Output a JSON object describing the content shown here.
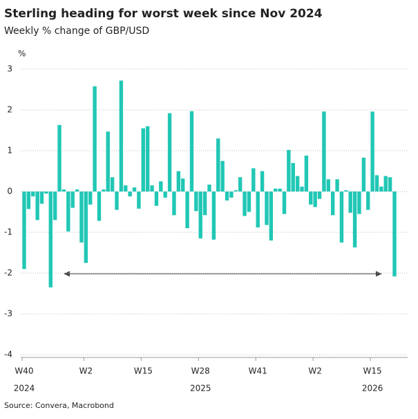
{
  "chart_data": {
    "type": "bar",
    "title": "Sterling heading for worst week since Nov 2024",
    "subtitle": "Weekly % change of GBP/USD",
    "y_label": "%",
    "source": "Source: Convera, Macrobond",
    "color": "#21c7b5",
    "grid": true,
    "ylim": [
      -4,
      3
    ],
    "yticks": [
      -4,
      -3,
      -2,
      -1,
      0,
      1,
      2,
      3
    ],
    "categories": [
      "W40",
      null,
      null,
      null,
      null,
      null,
      null,
      null,
      null,
      null,
      null,
      null,
      null,
      null,
      "W2",
      null,
      null,
      null,
      null,
      null,
      null,
      null,
      null,
      null,
      null,
      null,
      null,
      "W15",
      null,
      null,
      null,
      null,
      null,
      null,
      null,
      null,
      null,
      null,
      null,
      null,
      "W28",
      null,
      null,
      null,
      null,
      null,
      null,
      null,
      null,
      null,
      null,
      null,
      null,
      "W41",
      null,
      null,
      null,
      null,
      null,
      null,
      null,
      null,
      null,
      null,
      null,
      null,
      "W2",
      null,
      null,
      null,
      null,
      null,
      null,
      null,
      null,
      null,
      null,
      null,
      null,
      "W15",
      null,
      null,
      null,
      null,
      null
    ],
    "years": [
      "2024",
      null,
      null,
      null,
      null,
      null,
      null,
      null,
      null,
      null,
      null,
      null,
      null,
      null,
      null,
      null,
      null,
      null,
      null,
      null,
      null,
      null,
      null,
      null,
      null,
      null,
      null,
      null,
      null,
      null,
      null,
      null,
      null,
      null,
      null,
      null,
      null,
      null,
      null,
      null,
      "2025",
      null,
      null,
      null,
      null,
      null,
      null,
      null,
      null,
      null,
      null,
      null,
      null,
      null,
      null,
      null,
      null,
      null,
      null,
      null,
      null,
      null,
      null,
      null,
      null,
      null,
      null,
      null,
      null,
      null,
      null,
      null,
      null,
      null,
      null,
      null,
      null,
      null,
      null,
      "2026",
      null,
      null,
      null,
      null,
      null
    ],
    "values": [
      -1.9,
      -0.43,
      -0.12,
      -0.7,
      -0.3,
      -0.05,
      -2.35,
      -0.7,
      1.63,
      0.05,
      -0.98,
      -0.4,
      0.05,
      -1.25,
      -1.75,
      -0.32,
      2.58,
      -0.72,
      0.05,
      1.47,
      0.35,
      -0.45,
      2.72,
      0.15,
      -0.12,
      0.1,
      -0.42,
      1.55,
      1.6,
      0.15,
      -0.35,
      0.25,
      -0.15,
      1.92,
      -0.58,
      0.5,
      0.32,
      -0.9,
      1.97,
      -0.48,
      -1.15,
      -0.58,
      0.17,
      -1.18,
      1.3,
      0.75,
      -0.22,
      -0.15,
      0.03,
      0.35,
      -0.6,
      -0.5,
      0.57,
      -0.88,
      0.5,
      -0.82,
      -1.2,
      0.07,
      0.07,
      -0.55,
      1.02,
      0.7,
      0.38,
      0.12,
      0.88,
      -0.32,
      -0.38,
      -0.18,
      1.96,
      0.3,
      -0.58,
      0.3,
      -1.25,
      0.03,
      -0.52,
      -1.37,
      -0.55,
      0.83,
      -0.45,
      1.96,
      0.4,
      0.12,
      0.38,
      0.35,
      -2.08
    ]
  }
}
